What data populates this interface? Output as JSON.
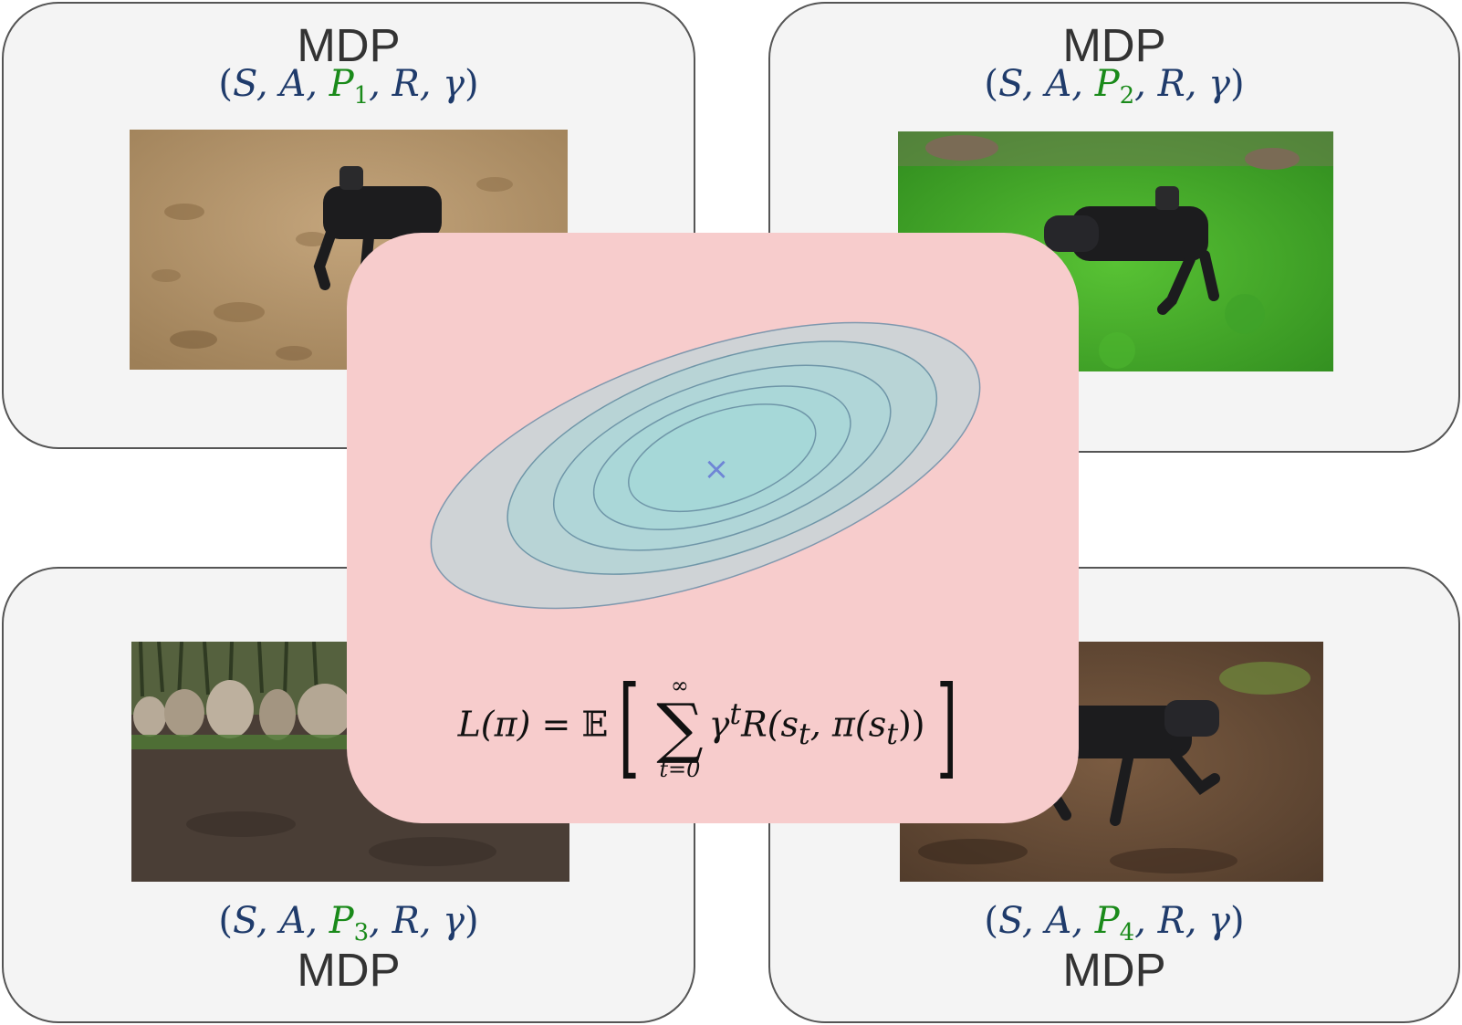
{
  "panels": {
    "tl": {
      "title": "MDP",
      "tuple_pre": "S, A, ",
      "p_letter": "P",
      "p_sub": "1",
      "tuple_post": ", R, γ"
    },
    "tr": {
      "title": "MDP",
      "tuple_pre": "S, A, ",
      "p_letter": "P",
      "p_sub": "2",
      "tuple_post": ", R, γ"
    },
    "bl": {
      "title": "MDP",
      "tuple_pre": "S, A, ",
      "p_letter": "P",
      "p_sub": "3",
      "tuple_post": ", R, γ"
    },
    "br": {
      "title": "MDP",
      "tuple_pre": "S, A, ",
      "p_letter": "P",
      "p_sub": "4",
      "tuple_post": ", R, γ"
    }
  },
  "center": {
    "optimum_marker": "×",
    "loss": {
      "lhs": "L(π) = ",
      "expect": "𝔼",
      "sum_top": "∞",
      "sum_sym": "∑",
      "sum_bot": "t=0",
      "summand": "γ",
      "summand_sup": "t",
      "reward": "R(s",
      "sub_t1": "t",
      "mid": ", π(s",
      "sub_t2": "t",
      "tail": "))"
    }
  },
  "colors": {
    "panel_bg": "#f4f4f4",
    "center_bg": "#f7cccc",
    "tuple_text": "#1f3b6b",
    "highlight_green": "#1a8a1a",
    "contour_outer": "#cfd3d6",
    "contour_inner": "#a6d8d8",
    "marker": "#6f86d6"
  },
  "images": {
    "tl": "robot-dog-on-sand-photo",
    "tr": "robot-dog-on-grass-photo",
    "bl": "rocks-and-dirt-terrain-photo",
    "br": "robot-dog-on-soil-photo"
  }
}
